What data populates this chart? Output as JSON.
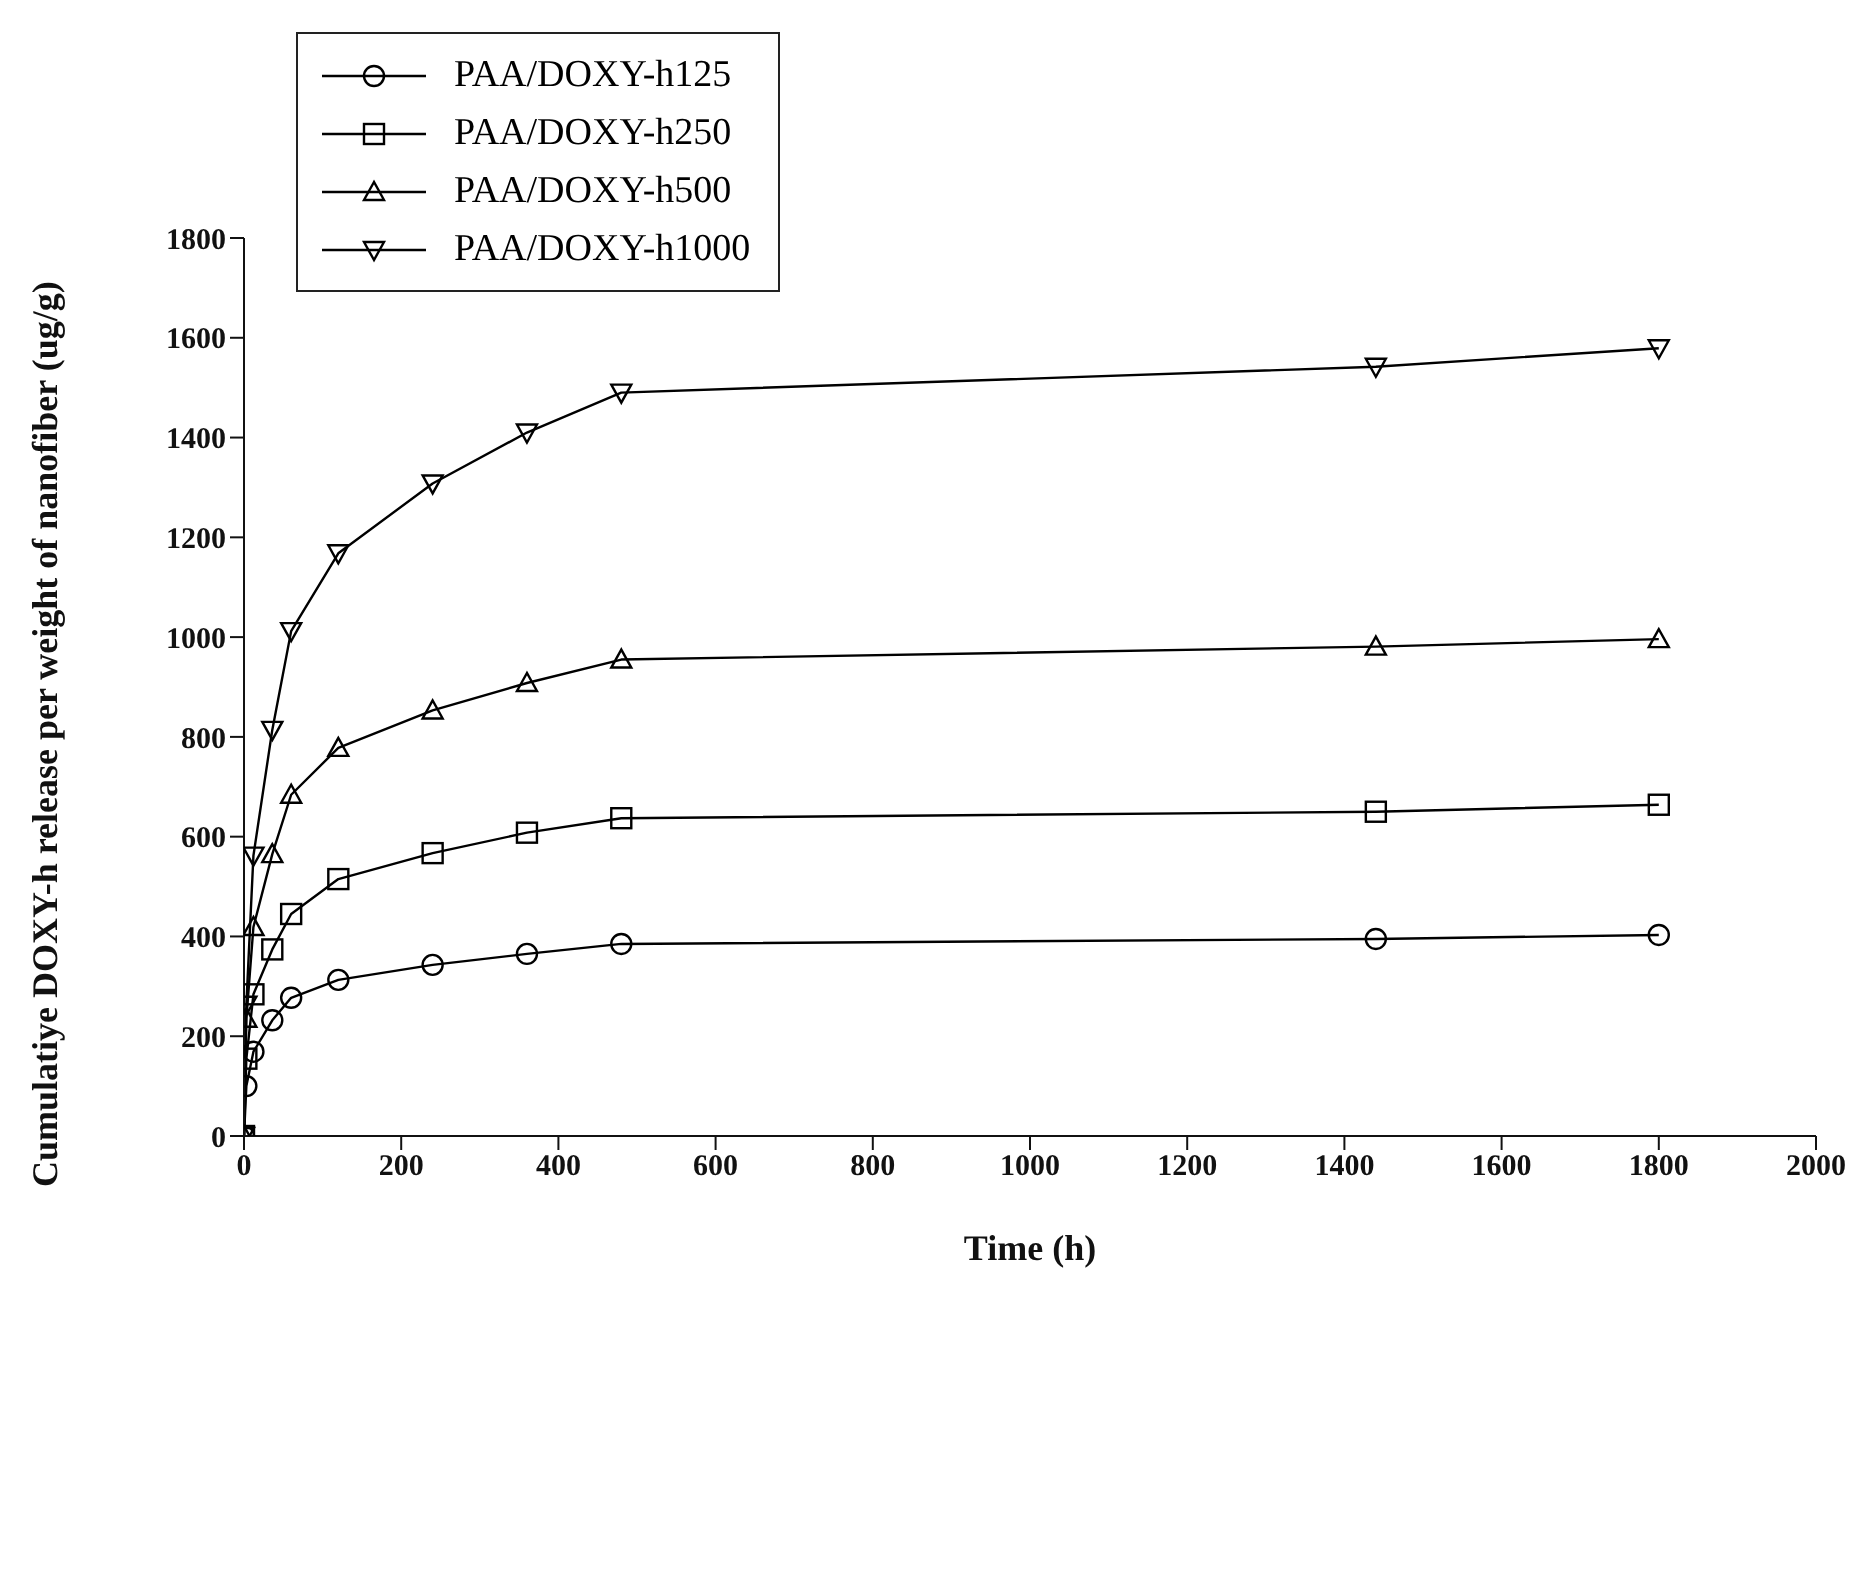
{
  "chart_data": {
    "type": "line",
    "xlabel": "Time (h)",
    "ylabel": "Cumulatiye DOXY-h release per weight of nanofiber (ug/g)",
    "x": [
      0,
      3,
      12,
      36,
      60,
      120,
      240,
      360,
      480,
      1440,
      1800
    ],
    "series": [
      {
        "name": "PAA/DOXY-h125",
        "color": "#000000",
        "marker": "circle",
        "values": [
          0,
          100,
          169,
          232,
          277,
          313,
          343,
          365,
          385,
          395,
          403
        ]
      },
      {
        "name": "PAA/DOXY-h250",
        "color": "#000000",
        "marker": "square",
        "values": [
          0,
          155,
          284,
          374,
          445,
          515,
          567,
          608,
          637,
          650,
          664
        ]
      },
      {
        "name": "PAA/DOXY-h500",
        "color": "#000000",
        "marker": "triangle",
        "values": [
          0,
          235,
          419,
          565,
          684,
          778,
          853,
          908,
          955,
          981,
          996
        ]
      },
      {
        "name": "PAA/DOXY-h1000",
        "color": "#000000",
        "marker": "triangle-down",
        "values": [
          0,
          263,
          562,
          814,
          1012,
          1168,
          1308,
          1410,
          1490,
          1542,
          1579
        ]
      }
    ],
    "xlim": [
      0,
      2000
    ],
    "xticks": [
      0,
      200,
      400,
      600,
      800,
      1000,
      1200,
      1400,
      1600,
      1800,
      2000
    ],
    "ylim": [
      0,
      1800
    ],
    "yticks": [
      0,
      200,
      400,
      600,
      800,
      1000,
      1200,
      1400,
      1600,
      1800
    ],
    "grid": false,
    "legend": "top left",
    "line_style": "solid"
  }
}
